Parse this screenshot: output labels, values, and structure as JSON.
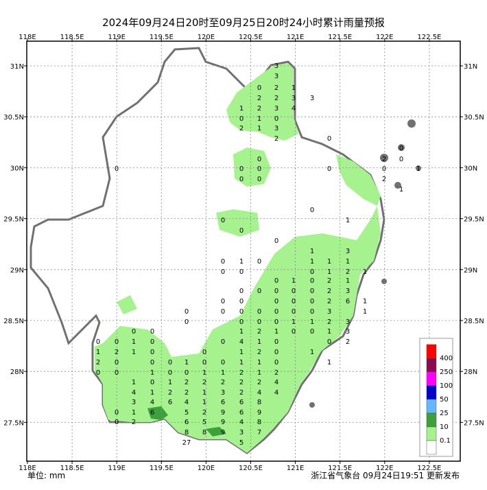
{
  "title": "2024年09月24日20时至09月25日20时24小时累计雨量预报",
  "lon_labels": [
    "118E",
    "118.5E",
    "119E",
    "119.5E",
    "120E",
    "120.5E",
    "121E",
    "121.5E",
    "122E",
    "122.5E"
  ],
  "lat_labels": [
    "31N",
    "30.5N",
    "30N",
    "29.5N",
    "29N",
    "28.5N",
    "28N",
    "27.5N"
  ],
  "stations": [
    3,
    3,
    0,
    2,
    1,
    2,
    2,
    3,
    3,
    1,
    2,
    3,
    4,
    0,
    1,
    0,
    2,
    1,
    3,
    2,
    0,
    0,
    0,
    0,
    0,
    0,
    0,
    0,
    0,
    2,
    0,
    0,
    1,
    2,
    1,
    0,
    1,
    0,
    0,
    0,
    1,
    3,
    0,
    1,
    0,
    1,
    1,
    1,
    0,
    0,
    0,
    1,
    2,
    1,
    0,
    1,
    0,
    2,
    1,
    0,
    0,
    0,
    0,
    0,
    2,
    3,
    0,
    0,
    0,
    0,
    0,
    2,
    6,
    1,
    0,
    0,
    0,
    0,
    0,
    0,
    0,
    3,
    1,
    0,
    0,
    0,
    0,
    1,
    1,
    2,
    3,
    0,
    0,
    1,
    2,
    1,
    0,
    0,
    1,
    3,
    0,
    0,
    1,
    0,
    0,
    4,
    1,
    0,
    0,
    2,
    1,
    2,
    1,
    0,
    0,
    1,
    2,
    0,
    1,
    2,
    0,
    0,
    0,
    1,
    0,
    0,
    1,
    1,
    0,
    1,
    0,
    0,
    1,
    0,
    0,
    1,
    1,
    2,
    1,
    2,
    1,
    0,
    1,
    2,
    2,
    2,
    2,
    2,
    4,
    4,
    1,
    2,
    2,
    1,
    3,
    2,
    4,
    4,
    3,
    4,
    6,
    4,
    1,
    6,
    6,
    8,
    0,
    1,
    6,
    5,
    2,
    9,
    6,
    9,
    0,
    2,
    6,
    5,
    9,
    4,
    8,
    8,
    8,
    9,
    3,
    7,
    27,
    5
  ],
  "legend": {
    "labels": [
      400,
      250,
      100,
      50,
      25,
      10,
      0.1
    ],
    "colors": [
      "#ff0000",
      "#8b0a50",
      "#ff00ff",
      "#0000cd",
      "#63b8ff",
      "#3ca03c",
      "#a6f28f",
      "#ffffff"
    ]
  },
  "unit": "单位: mm",
  "footer": "浙江省气象台 09月24日19:51 更新发布"
}
